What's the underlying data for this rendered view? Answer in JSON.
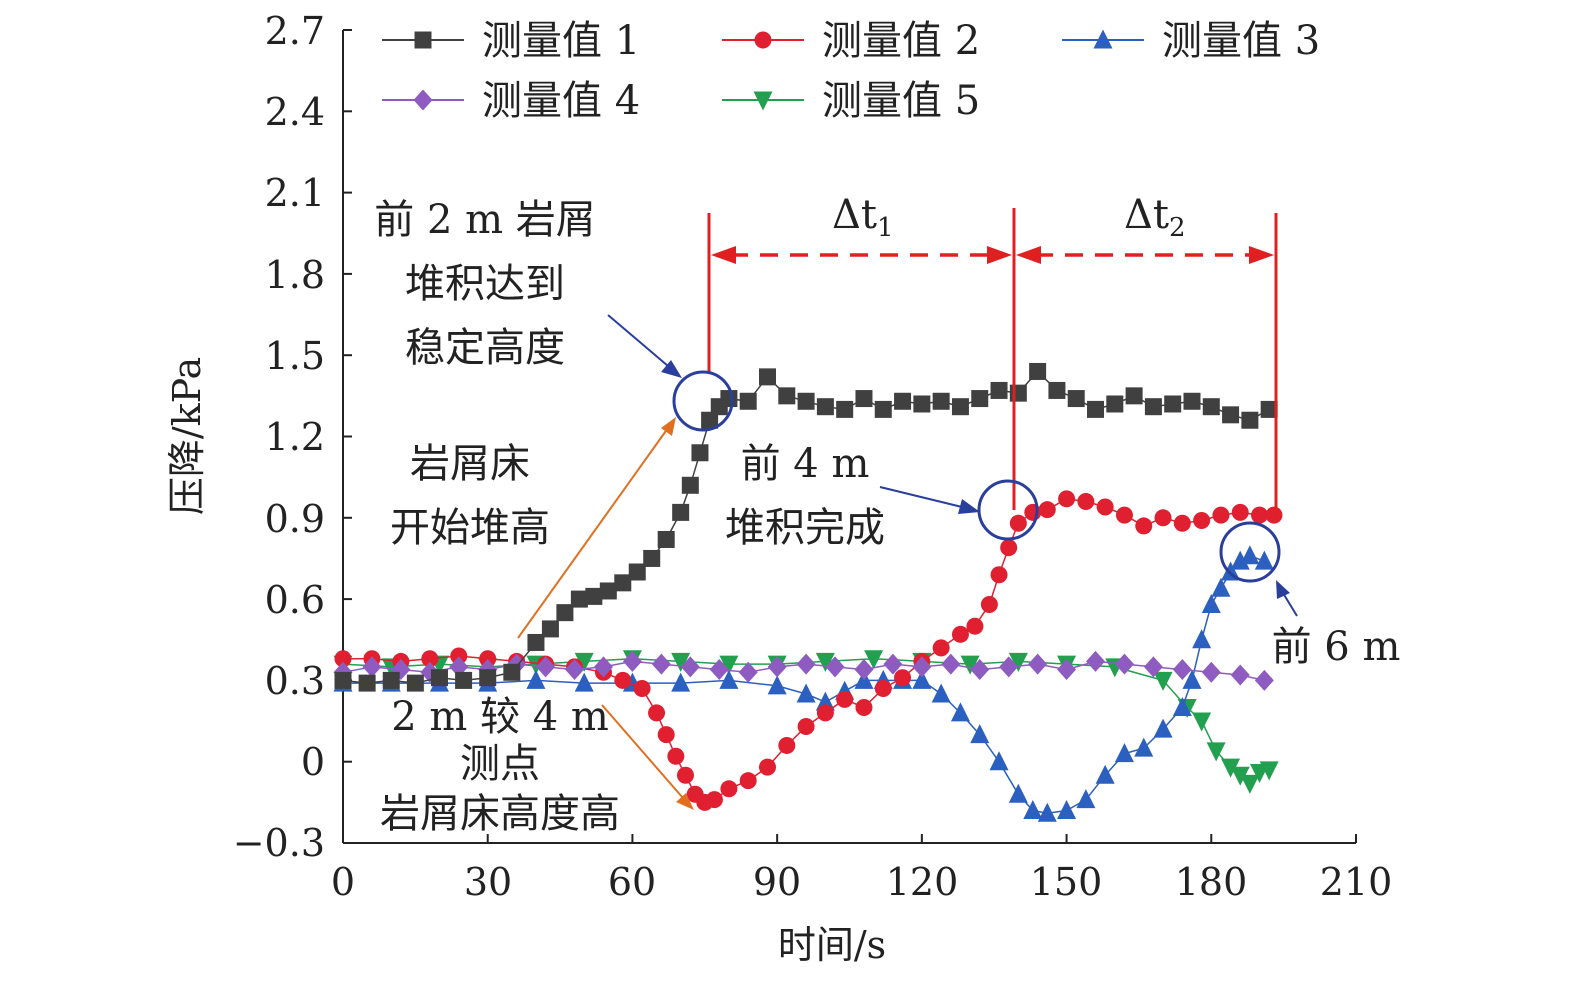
{
  "chart_data": {
    "type": "scatter",
    "title": "",
    "xlabel": "时间/s",
    "ylabel": "压降/kPa",
    "xlim": [
      0,
      210
    ],
    "ylim": [
      -0.3,
      2.7
    ],
    "xticks": [
      "0",
      "30",
      "60",
      "90",
      "120",
      "150",
      "180",
      "210"
    ],
    "yticks": [
      "−0.3",
      "0",
      "0.3",
      "0.6",
      "0.9",
      "1.2",
      "1.5",
      "1.8",
      "2.1",
      "2.4",
      "2.7"
    ],
    "legend_position": "top",
    "series": [
      {
        "name": "测量值 1",
        "color": "#404040",
        "marker": "square",
        "x": [
          0,
          5,
          10,
          15,
          20,
          25,
          30,
          35,
          40,
          43,
          46,
          49,
          52,
          55,
          58,
          61,
          64,
          67,
          70,
          72,
          74,
          76,
          78,
          80,
          84,
          88,
          92,
          96,
          100,
          104,
          108,
          112,
          116,
          120,
          124,
          128,
          132,
          136,
          140,
          144,
          148,
          152,
          156,
          160,
          164,
          168,
          172,
          176,
          180,
          184,
          188,
          192
        ],
        "y": [
          0.3,
          0.29,
          0.3,
          0.29,
          0.31,
          0.3,
          0.31,
          0.33,
          0.44,
          0.49,
          0.55,
          0.6,
          0.61,
          0.63,
          0.66,
          0.7,
          0.75,
          0.82,
          0.92,
          1.02,
          1.14,
          1.26,
          1.31,
          1.34,
          1.33,
          1.42,
          1.35,
          1.33,
          1.31,
          1.3,
          1.34,
          1.3,
          1.33,
          1.32,
          1.33,
          1.31,
          1.34,
          1.37,
          1.36,
          1.44,
          1.37,
          1.34,
          1.3,
          1.32,
          1.35,
          1.31,
          1.32,
          1.33,
          1.31,
          1.28,
          1.26,
          1.3
        ]
      },
      {
        "name": "测量值 2",
        "color": "#e02030",
        "marker": "circle",
        "x": [
          0,
          6,
          12,
          18,
          24,
          30,
          36,
          42,
          48,
          54,
          58,
          62,
          65,
          67,
          69,
          71,
          73,
          75,
          77,
          80,
          84,
          88,
          92,
          96,
          100,
          104,
          108,
          112,
          116,
          120,
          124,
          128,
          131,
          134,
          136,
          138,
          140,
          143,
          146,
          150,
          154,
          158,
          162,
          166,
          170,
          174,
          178,
          182,
          186,
          190,
          193
        ],
        "y": [
          0.38,
          0.38,
          0.37,
          0.38,
          0.39,
          0.38,
          0.37,
          0.36,
          0.35,
          0.33,
          0.3,
          0.27,
          0.18,
          0.1,
          0.02,
          -0.05,
          -0.12,
          -0.15,
          -0.14,
          -0.1,
          -0.07,
          -0.02,
          0.06,
          0.13,
          0.18,
          0.23,
          0.2,
          0.27,
          0.31,
          0.37,
          0.42,
          0.47,
          0.5,
          0.58,
          0.69,
          0.79,
          0.88,
          0.92,
          0.93,
          0.97,
          0.96,
          0.94,
          0.91,
          0.87,
          0.9,
          0.88,
          0.89,
          0.91,
          0.92,
          0.91,
          0.91
        ]
      },
      {
        "name": "测量值 3",
        "color": "#2b5fc0",
        "marker": "triangle",
        "x": [
          0,
          10,
          20,
          30,
          40,
          50,
          60,
          70,
          80,
          90,
          96,
          100,
          104,
          108,
          112,
          116,
          120,
          124,
          128,
          132,
          136,
          140,
          143,
          146,
          150,
          154,
          158,
          162,
          166,
          170,
          174,
          176,
          178,
          180,
          182,
          184,
          186,
          188,
          191
        ],
        "y": [
          0.29,
          0.29,
          0.29,
          0.29,
          0.3,
          0.29,
          0.29,
          0.29,
          0.3,
          0.28,
          0.25,
          0.22,
          0.26,
          0.3,
          0.3,
          0.3,
          0.3,
          0.25,
          0.18,
          0.1,
          0.0,
          -0.12,
          -0.18,
          -0.19,
          -0.18,
          -0.14,
          -0.05,
          0.03,
          0.05,
          0.12,
          0.2,
          0.3,
          0.45,
          0.58,
          0.64,
          0.7,
          0.74,
          0.76,
          0.74
        ]
      },
      {
        "name": "测量值 4",
        "color": "#8e5cc0",
        "marker": "diamond",
        "x": [
          0,
          6,
          12,
          18,
          24,
          30,
          36,
          42,
          48,
          54,
          60,
          66,
          72,
          78,
          84,
          90,
          96,
          102,
          108,
          114,
          120,
          126,
          132,
          138,
          144,
          150,
          156,
          162,
          168,
          174,
          180,
          186,
          191
        ],
        "y": [
          0.33,
          0.35,
          0.34,
          0.33,
          0.35,
          0.34,
          0.36,
          0.35,
          0.34,
          0.35,
          0.37,
          0.36,
          0.35,
          0.34,
          0.33,
          0.35,
          0.36,
          0.35,
          0.34,
          0.36,
          0.35,
          0.36,
          0.34,
          0.35,
          0.36,
          0.34,
          0.37,
          0.36,
          0.35,
          0.34,
          0.33,
          0.32,
          0.3
        ]
      },
      {
        "name": "测量值 5",
        "color": "#22a050",
        "marker": "triangle-down",
        "x": [
          0,
          10,
          20,
          30,
          40,
          50,
          60,
          70,
          80,
          90,
          100,
          110,
          120,
          130,
          140,
          150,
          160,
          170,
          175,
          178,
          181,
          184,
          186,
          188,
          190,
          192
        ],
        "y": [
          0.36,
          0.35,
          0.36,
          0.35,
          0.36,
          0.37,
          0.38,
          0.37,
          0.36,
          0.36,
          0.37,
          0.38,
          0.37,
          0.36,
          0.37,
          0.36,
          0.35,
          0.3,
          0.2,
          0.15,
          0.04,
          -0.02,
          -0.05,
          -0.08,
          -0.04,
          -0.03
        ]
      }
    ],
    "annotations": {
      "a1": [
        "前 2 m 岩屑",
        "堆积达到",
        "稳定高度"
      ],
      "a2": [
        "岩屑床",
        "开始堆高"
      ],
      "a3": [
        "前 4 m",
        "堆积完成"
      ],
      "a4": [
        "2 m 较 4 m",
        "测点",
        "岩屑床高度高"
      ],
      "a5": "前 6 m",
      "dt1": "Δt",
      "dt1_sub": "1",
      "dt2": "Δt",
      "dt2_sub": "2"
    }
  }
}
